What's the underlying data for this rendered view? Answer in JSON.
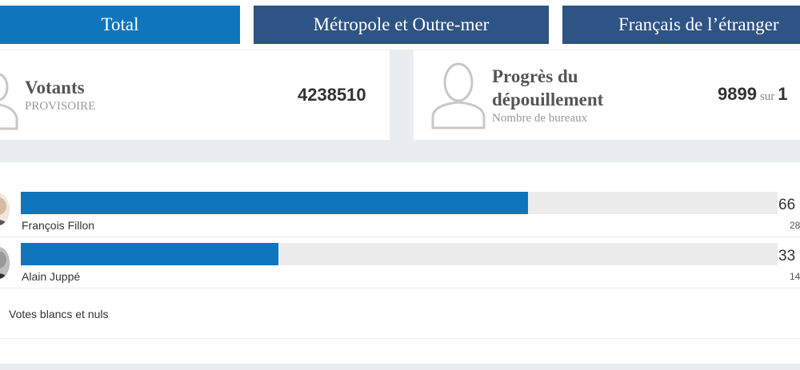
{
  "tabs": [
    {
      "label": "Total",
      "active": true
    },
    {
      "label": "Métropole et Outre-mer",
      "active": false
    },
    {
      "label": "Français de l’étranger",
      "active": false
    }
  ],
  "votants": {
    "title": "Votants",
    "subtitle": "PROVISOIRE",
    "value": "4238510",
    "icon": "person-icon"
  },
  "progress": {
    "title_line1": "Progrès du",
    "title_line2": "dépouillement",
    "subtitle": "Nombre de bureaux",
    "value": "9899",
    "sur": "sur",
    "total_visible": "1",
    "icon": "person-icon"
  },
  "candidates": [
    {
      "name": "François Fillon",
      "percent_visible": "66",
      "votes_visible": "28",
      "bar_fraction": 0.67
    },
    {
      "name": "Alain Juppé",
      "percent_visible": "33",
      "votes_visible": "14",
      "bar_fraction": 0.34
    }
  ],
  "blank": {
    "label": "Votes blancs et nuls"
  },
  "colors": {
    "accent": "#0f75bd",
    "tab_inactive": "#2e5385",
    "band": "#e9edf1",
    "bar_track": "#ececec"
  }
}
